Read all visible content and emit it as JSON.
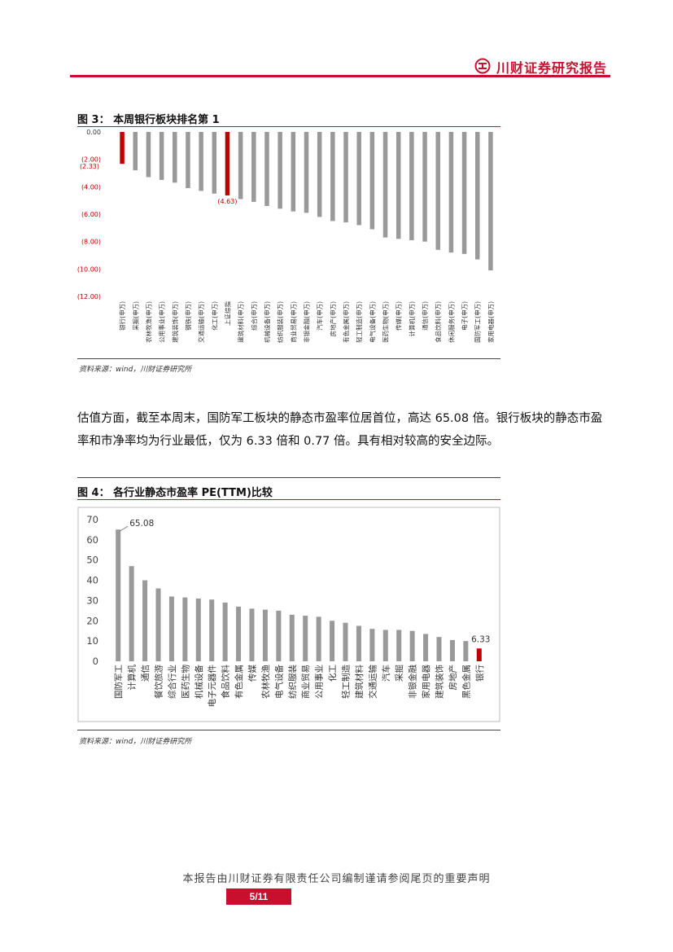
{
  "header": {
    "title": "川财证券研究报告"
  },
  "figure3": {
    "title": "图 3： 本周银行板块排名第 1",
    "source": "资料来源：wind，川财证券研究所",
    "chart_data": {
      "type": "bar",
      "categories": [
        "银行(申万)",
        "采掘(申万)",
        "农林牧渔(申万)",
        "公用事业(申万)",
        "建筑装饰(申万)",
        "钢铁(申万)",
        "交通运输(申万)",
        "化工(申万)",
        "上证综指",
        "建筑材料(申万)",
        "综合(申万)",
        "机械设备(申万)",
        "纺织服装(申万)",
        "商业贸易(申万)",
        "非银金融(申万)",
        "汽车(申万)",
        "房地产(申万)",
        "有色金属(申万)",
        "轻工制造(申万)",
        "电气设备(申万)",
        "医药生物(申万)",
        "传媒(申万)",
        "计算机(申万)",
        "通信(申万)",
        "食品饮料(申万)",
        "休闲服务(申万)",
        "电子(申万)",
        "国防军工(申万)",
        "家用电器(申万)"
      ],
      "values": [
        -2.33,
        -2.8,
        -3.3,
        -3.5,
        -3.7,
        -4.1,
        -4.3,
        -4.5,
        -4.63,
        -4.9,
        -5.1,
        -5.4,
        -5.6,
        -5.8,
        -5.9,
        -6.2,
        -6.5,
        -6.6,
        -6.8,
        -7.1,
        -7.7,
        -7.8,
        -7.9,
        -8.0,
        -8.6,
        -8.8,
        -8.9,
        -9.3,
        -10.1
      ],
      "ylim": [
        -12,
        0
      ],
      "ytick_labels": [
        "0.00",
        "(2.00)",
        "(4.00)",
        "(6.00)",
        "(8.00)",
        "(10.00)",
        "(12.00)"
      ],
      "yticks": [
        0,
        -2,
        -4,
        -6,
        -8,
        -10,
        -12
      ],
      "data_labels": [
        {
          "index": 0,
          "text": "(2.33)"
        },
        {
          "index": 8,
          "text": "(4.63)"
        }
      ],
      "highlight_indices": [
        0,
        8
      ],
      "colors": {
        "highlight": "#c00000",
        "default": "#999999",
        "axis_text_red": "#c00000"
      }
    }
  },
  "paragraph": "估值方面，截至本周末，国防军工板块的静态市盈率位居首位，高达 65.08 倍。银行板块的静态市盈率和市净率均为行业最低，仅为 6.33 倍和 0.77 倍。具有相对较高的安全边际。",
  "figure4": {
    "title": "图 4： 各行业静态市盈率 PE(TTM)比较",
    "source": "资料来源：wind，川财证券研究所",
    "chart_data": {
      "type": "bar",
      "categories": [
        "国防军工",
        "计算机",
        "通信",
        "餐饮旅游",
        "综合行业",
        "医药生物",
        "机械设备",
        "电子元器件",
        "食品饮料",
        "有色金属",
        "传媒",
        "农林牧渔",
        "电气设备",
        "纺织服装",
        "商业贸易",
        "公用事业",
        "化工",
        "轻工制造",
        "建筑材料",
        "交通运输",
        "汽车",
        "采掘",
        "非银金融",
        "家用电器",
        "建筑装饰",
        "房地产",
        "黑色金属",
        "银行"
      ],
      "values": [
        65.08,
        47,
        40,
        36,
        32,
        31.5,
        31,
        30.5,
        29,
        27,
        26,
        25.5,
        25,
        23,
        22.5,
        22,
        20,
        19,
        17.5,
        16,
        15.5,
        15.5,
        15,
        13.5,
        12,
        10.5,
        10,
        6.33
      ],
      "ylim": [
        0,
        70
      ],
      "yticks": [
        0,
        10,
        20,
        30,
        40,
        50,
        60,
        70
      ],
      "data_labels": [
        {
          "index": 0,
          "text": "65.08"
        },
        {
          "index": 27,
          "text": "6.33"
        }
      ],
      "highlight_indices": [
        27
      ],
      "colors": {
        "highlight": "#c00000",
        "default": "#999999"
      }
    }
  },
  "footer": {
    "disclaimer": "本报告由川财证券有限责任公司编制谨请参阅尾页的重要声明",
    "page": "5/11"
  }
}
